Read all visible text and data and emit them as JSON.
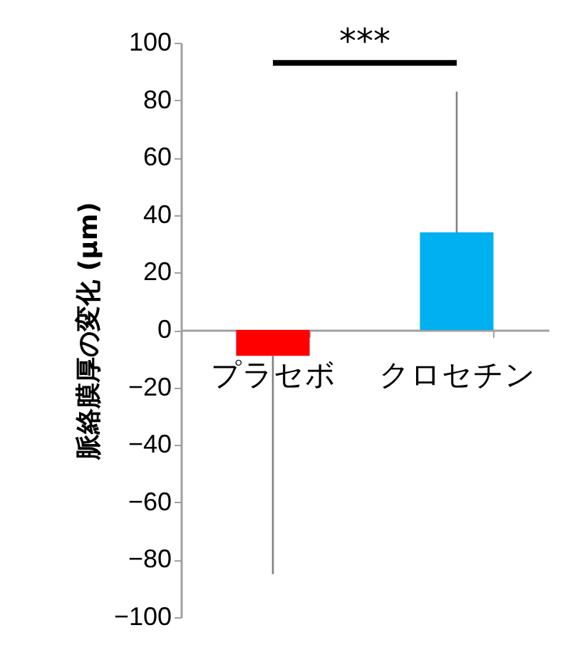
{
  "chart_data": {
    "type": "bar",
    "ylabel": "脈絡膜厚の変化 (μm)",
    "categories": [
      "プラセボ",
      "クロセチン"
    ],
    "values": [
      -9,
      34
    ],
    "colors": [
      "#ff0000",
      "#00b0f0"
    ],
    "errors": [
      [
        -85,
        -9
      ],
      [
        34,
        83
      ]
    ],
    "ylim": [
      -100,
      100
    ],
    "yticks": [
      -100,
      -80,
      -60,
      -40,
      -20,
      0,
      20,
      40,
      60,
      80,
      100
    ],
    "grid": false,
    "annotations": [
      "***"
    ]
  }
}
